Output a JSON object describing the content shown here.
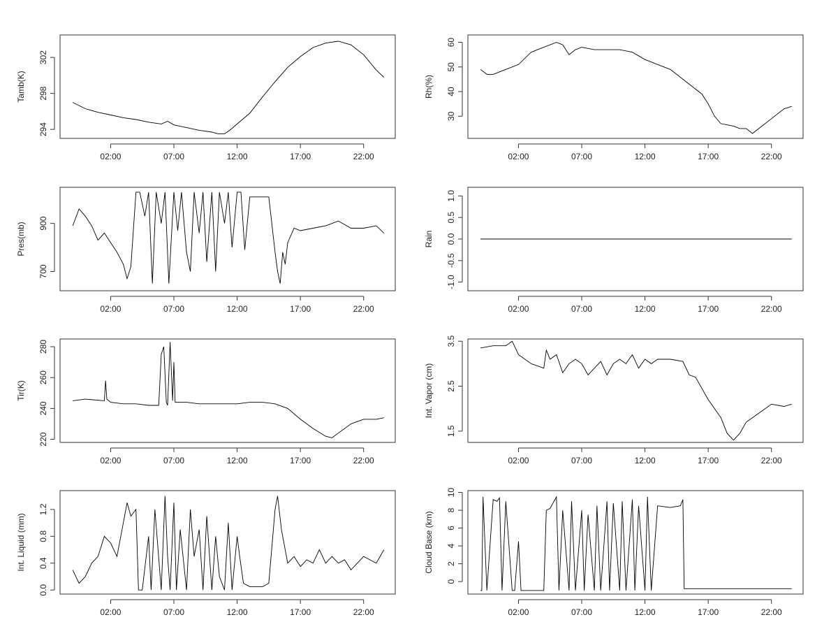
{
  "chart_data": [
    {
      "id": "tamb",
      "type": "line",
      "ylabel": "Tamb(K)",
      "xlim": [
        -2,
        24.5
      ],
      "ylim": [
        293,
        304.5
      ],
      "yticks": [
        294,
        298,
        302
      ],
      "xticks": [
        "02:00",
        "07:00",
        "12:00",
        "17:00",
        "22:00"
      ],
      "series": [
        {
          "x": [
            -1,
            0,
            1,
            2,
            3,
            4,
            5,
            6,
            6.5,
            7,
            8,
            9,
            10,
            10.5,
            11,
            11.5,
            12,
            13,
            14,
            15,
            16,
            17,
            18,
            19,
            20,
            21,
            22,
            23,
            23.6
          ],
          "y": [
            297.0,
            296.3,
            295.9,
            295.6,
            295.3,
            295.1,
            294.8,
            294.6,
            294.9,
            294.5,
            294.2,
            293.9,
            293.7,
            293.5,
            293.5,
            294.0,
            294.6,
            295.8,
            297.6,
            299.3,
            300.9,
            302.1,
            303.1,
            303.6,
            303.8,
            303.4,
            302.3,
            300.6,
            299.8
          ]
        }
      ]
    },
    {
      "id": "rh",
      "type": "line",
      "ylabel": "Rh(%)",
      "xlim": [
        -2,
        24.5
      ],
      "ylim": [
        21,
        63
      ],
      "yticks": [
        30,
        40,
        50,
        60
      ],
      "xticks": [
        "02:00",
        "07:00",
        "12:00",
        "17:00",
        "22:00"
      ],
      "series": [
        {
          "x": [
            -1,
            -0.5,
            0,
            1,
            2,
            3,
            4,
            5,
            5.5,
            6,
            6.5,
            7,
            8,
            9,
            10,
            11,
            12,
            13,
            14,
            15,
            16,
            16.5,
            17,
            17.5,
            18,
            19,
            19.5,
            20,
            20.5,
            21,
            22,
            23,
            23.6
          ],
          "y": [
            49,
            47,
            47,
            49,
            51,
            56,
            58,
            60,
            59,
            55,
            57,
            58,
            57,
            57,
            57,
            56,
            53,
            51,
            49,
            45,
            41,
            39,
            35,
            30,
            27,
            26,
            25,
            25,
            23,
            25,
            29,
            33,
            34
          ]
        }
      ]
    },
    {
      "id": "pres",
      "type": "line",
      "ylabel": "Pres(mb)",
      "xlim": [
        -2,
        24.5
      ],
      "ylim": [
        620,
        1050
      ],
      "yticks": [
        700,
        900
      ],
      "xticks": [
        "02:00",
        "07:00",
        "12:00",
        "17:00",
        "22:00"
      ],
      "series": [
        {
          "x": [
            -1,
            -0.5,
            0,
            0.5,
            1,
            1.5,
            2,
            2.5,
            3,
            3.3,
            3.6,
            4,
            4.3,
            4.7,
            5,
            5.3,
            5.6,
            6,
            6.3,
            6.6,
            7,
            7.3,
            7.6,
            8,
            8.3,
            8.6,
            9,
            9.3,
            9.6,
            10,
            10.3,
            10.6,
            11,
            11.3,
            11.6,
            12,
            12.3,
            12.6,
            13,
            13.5,
            14,
            14.5,
            15,
            15.2,
            15.4,
            15.6,
            15.8,
            16,
            16.5,
            17,
            18,
            19,
            20,
            21,
            22,
            23,
            23.6
          ],
          "y": [
            890,
            960,
            930,
            890,
            830,
            860,
            820,
            780,
            730,
            670,
            720,
            1030,
            1030,
            930,
            1030,
            650,
            1030,
            900,
            1030,
            650,
            1030,
            870,
            1030,
            780,
            700,
            1030,
            860,
            1030,
            740,
            1030,
            700,
            1030,
            900,
            1030,
            800,
            1030,
            1030,
            790,
            1010,
            1010,
            1010,
            1010,
            780,
            700,
            650,
            780,
            730,
            820,
            880,
            870,
            880,
            890,
            910,
            880,
            880,
            890,
            860
          ]
        }
      ]
    },
    {
      "id": "rain",
      "type": "line",
      "ylabel": "Rain",
      "xlim": [
        -2,
        24.5
      ],
      "ylim": [
        -1.2,
        1.2
      ],
      "yticks": [
        -1.0,
        -0.5,
        0.0,
        0.5,
        1.0
      ],
      "xticks": [
        "02:00",
        "07:00",
        "12:00",
        "17:00",
        "22:00"
      ],
      "series": [
        {
          "x": [
            -1,
            23.6
          ],
          "y": [
            0,
            0
          ]
        }
      ]
    },
    {
      "id": "tir",
      "type": "line",
      "ylabel": "Tir(K)",
      "xlim": [
        -2,
        24.5
      ],
      "ylim": [
        218,
        285
      ],
      "yticks": [
        220,
        240,
        260,
        280
      ],
      "xticks": [
        "02:00",
        "07:00",
        "12:00",
        "17:00",
        "22:00"
      ],
      "series": [
        {
          "x": [
            -1,
            0,
            1.5,
            1.6,
            1.7,
            2,
            3,
            4,
            5,
            5.8,
            6,
            6.2,
            6.4,
            6.5,
            6.7,
            6.9,
            7,
            7.1,
            7.3,
            8,
            9,
            10,
            11,
            12,
            13,
            14,
            15,
            16,
            17,
            18,
            19,
            19.5,
            20,
            21,
            22,
            23,
            23.6
          ],
          "y": [
            245,
            246,
            245,
            258,
            246,
            244,
            243,
            243,
            242,
            242,
            275,
            280,
            244,
            242,
            283,
            245,
            270,
            244,
            244,
            244,
            243,
            243,
            243,
            243,
            244,
            244,
            243,
            240,
            233,
            227,
            222,
            221,
            224,
            230,
            233,
            233,
            234
          ]
        }
      ]
    },
    {
      "id": "vapor",
      "type": "line",
      "ylabel": "Int. Vapor (cm)",
      "xlim": [
        -2,
        24.5
      ],
      "ylim": [
        1.25,
        3.55
      ],
      "yticks": [
        1.5,
        2.5,
        3.5
      ],
      "xticks": [
        "02:00",
        "07:00",
        "12:00",
        "17:00",
        "22:00"
      ],
      "series": [
        {
          "x": [
            -1,
            0,
            1,
            1.5,
            2,
            3,
            4,
            4.2,
            4.5,
            5,
            5.5,
            6,
            6.5,
            7,
            7.5,
            8,
            8.5,
            9,
            9.5,
            10,
            10.5,
            11,
            11.5,
            12,
            12.5,
            13,
            14,
            15,
            15.5,
            16,
            17,
            18,
            18.5,
            19,
            19.5,
            20,
            21,
            22,
            23,
            23.6
          ],
          "y": [
            3.35,
            3.4,
            3.4,
            3.5,
            3.2,
            3.0,
            2.9,
            3.3,
            3.1,
            3.2,
            2.8,
            3.0,
            3.1,
            3.0,
            2.75,
            2.9,
            3.05,
            2.75,
            3.0,
            3.1,
            3.0,
            3.2,
            2.9,
            3.1,
            3.0,
            3.1,
            3.1,
            3.05,
            2.75,
            2.7,
            2.2,
            1.8,
            1.45,
            1.3,
            1.45,
            1.7,
            1.9,
            2.1,
            2.05,
            2.1
          ]
        }
      ]
    },
    {
      "id": "liquid",
      "type": "line",
      "ylabel": "Int. Liquid (mm)",
      "xlim": [
        -2,
        24.5
      ],
      "ylim": [
        -0.06,
        1.48
      ],
      "yticks": [
        0.0,
        0.4,
        0.8,
        1.2
      ],
      "xticks": [
        "02:00",
        "07:00",
        "12:00",
        "17:00",
        "22:00"
      ],
      "series": [
        {
          "x": [
            -1,
            -0.5,
            0,
            0.5,
            1,
            1.5,
            2,
            2.5,
            3,
            3.3,
            3.6,
            4,
            4.2,
            4.5,
            5,
            5.2,
            5.5,
            6,
            6.3,
            6.5,
            6.7,
            7,
            7.2,
            7.5,
            8,
            8.3,
            8.6,
            9,
            9.3,
            9.6,
            10,
            10.3,
            10.6,
            11,
            11.3,
            11.6,
            12,
            12.2,
            12.5,
            13,
            14,
            14.5,
            15,
            15.2,
            15.5,
            16,
            16.5,
            17,
            17.5,
            18,
            18.5,
            19,
            19.5,
            20,
            20.5,
            21,
            21.5,
            22,
            22.5,
            23,
            23.6
          ],
          "y": [
            0.3,
            0.1,
            0.2,
            0.4,
            0.5,
            0.8,
            0.7,
            0.5,
            1.0,
            1.3,
            1.1,
            1.2,
            0.0,
            0.0,
            0.8,
            0.0,
            1.2,
            0.0,
            1.4,
            0.5,
            0.0,
            1.3,
            0.0,
            0.9,
            0.0,
            1.2,
            0.5,
            0.9,
            0.0,
            1.1,
            0.0,
            0.8,
            0.2,
            0.0,
            1.0,
            0.0,
            0.8,
            0.5,
            0.1,
            0.05,
            0.05,
            0.1,
            1.2,
            1.4,
            0.9,
            0.4,
            0.5,
            0.35,
            0.45,
            0.4,
            0.6,
            0.4,
            0.5,
            0.4,
            0.45,
            0.3,
            0.4,
            0.5,
            0.45,
            0.4,
            0.6
          ]
        }
      ]
    },
    {
      "id": "cloud",
      "type": "line",
      "ylabel": "Cloud Base (km)",
      "xlim": [
        -2,
        24.5
      ],
      "ylim": [
        -1.4,
        10.2
      ],
      "yticks": [
        0,
        2,
        4,
        6,
        8,
        10
      ],
      "xticks": [
        "02:00",
        "07:00",
        "12:00",
        "17:00",
        "22:00"
      ],
      "series": [
        {
          "x": [
            -1,
            -0.9,
            -0.8,
            -0.5,
            0,
            0.3,
            0.5,
            0.7,
            1,
            1.5,
            1.7,
            2,
            2.2,
            3,
            3.5,
            4,
            4.2,
            4.5,
            5,
            5.2,
            5.5,
            6,
            6.2,
            6.5,
            7,
            7.2,
            7.5,
            8,
            8.2,
            8.5,
            9,
            9.2,
            9.5,
            10,
            10.2,
            10.5,
            11,
            11.2,
            11.5,
            12,
            12.2,
            12.5,
            13,
            14,
            14.8,
            15,
            15.1,
            20,
            23.6
          ],
          "y": [
            -1,
            -1,
            9.5,
            -1,
            9.2,
            9.0,
            9.4,
            -1,
            9.0,
            -1,
            -1,
            4.5,
            -1,
            -1,
            -1,
            -1,
            8.0,
            8.2,
            9.5,
            -1,
            8.0,
            -1,
            9.0,
            -1,
            8.0,
            -1,
            7.5,
            -1,
            8.5,
            -1,
            9.0,
            -1,
            8.8,
            -1,
            9.0,
            -1,
            9.2,
            -1,
            8.5,
            -1,
            9.5,
            -1,
            8.5,
            8.3,
            8.5,
            9.2,
            -0.8,
            -0.8,
            -0.8
          ]
        }
      ]
    }
  ]
}
